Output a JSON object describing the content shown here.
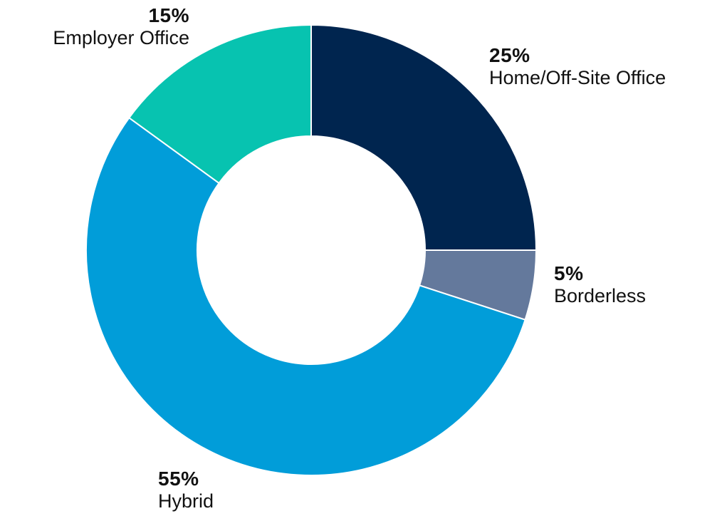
{
  "chart_data": {
    "type": "pie",
    "donut": true,
    "start_angle": "12 o'clock",
    "direction": "clockwise",
    "slices": [
      {
        "label": "Home/Off-Site Office",
        "value": 25,
        "value_label": "25%",
        "color": "#00254f"
      },
      {
        "label": "Borderless",
        "value": 5,
        "value_label": "5%",
        "color": "#64799c"
      },
      {
        "label": "Hybrid",
        "value": 55,
        "value_label": "55%",
        "color": "#019dd9"
      },
      {
        "label": "Employer Office",
        "value": 15,
        "value_label": "15%",
        "color": "#07c3b0"
      }
    ],
    "separator_color": "#ffffff",
    "legend": "none"
  }
}
